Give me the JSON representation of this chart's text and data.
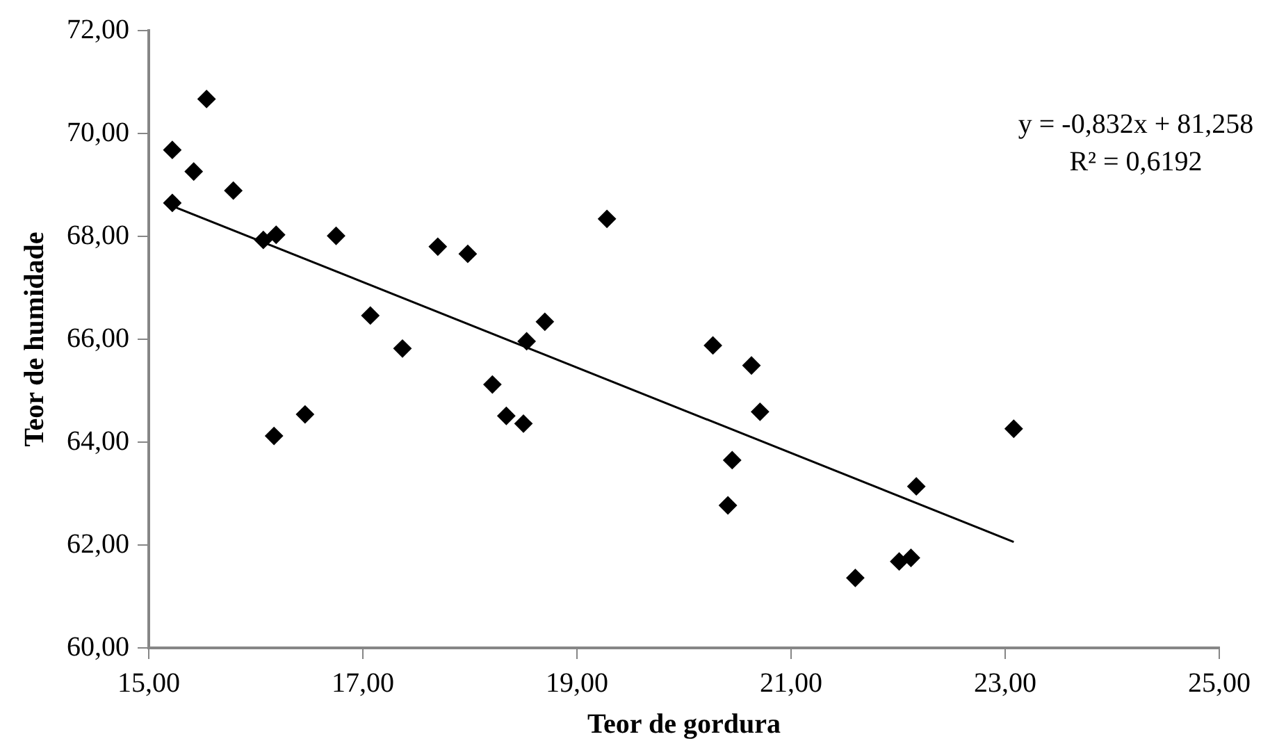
{
  "chart_data": {
    "type": "scatter",
    "xlabel": "Teor de gordura",
    "ylabel": "Teor de humidade",
    "xlim": [
      15,
      25
    ],
    "xticks": [
      {
        "value": 15,
        "label": "15,00"
      },
      {
        "value": 17,
        "label": "17,00"
      },
      {
        "value": 19,
        "label": "19,00"
      },
      {
        "value": 21,
        "label": "21,00"
      },
      {
        "value": 23,
        "label": "23,00"
      },
      {
        "value": 25,
        "label": "25,00"
      }
    ],
    "ylim": [
      60,
      72
    ],
    "yticks": [
      {
        "value": 60,
        "label": "60,00"
      },
      {
        "value": 62,
        "label": "62,00"
      },
      {
        "value": 64,
        "label": "64,00"
      },
      {
        "value": 66,
        "label": "66,00"
      },
      {
        "value": 68,
        "label": "68,00"
      },
      {
        "value": 70,
        "label": "70,00"
      },
      {
        "value": 72,
        "label": "72,00"
      }
    ],
    "grid": false,
    "legend": false,
    "series": [
      {
        "type": "scatter",
        "marker": "diamond",
        "color": "#000000",
        "x": [
          15.22,
          15.54,
          15.42,
          15.22,
          15.79,
          16.07,
          16.19,
          16.75,
          17.7,
          17.98,
          19.28,
          17.07,
          17.37,
          18.53,
          18.7,
          18.21,
          18.34,
          18.5,
          16.17,
          16.46,
          20.27,
          20.63,
          20.71,
          20.45,
          20.41,
          22.17,
          23.08,
          21.6,
          22.01,
          22.12
        ],
        "values": [
          69.68,
          70.67,
          69.26,
          68.65,
          68.89,
          67.93,
          68.03,
          68.01,
          67.8,
          67.66,
          68.34,
          66.46,
          65.82,
          65.96,
          66.34,
          65.12,
          64.51,
          64.36,
          64.12,
          64.54,
          65.88,
          65.49,
          64.59,
          63.65,
          62.77,
          63.14,
          64.26,
          61.36,
          61.68,
          61.75
        ]
      },
      {
        "type": "line",
        "marker": "none",
        "color": "#000000",
        "x": [
          15.22,
          23.08
        ],
        "values": [
          68.59,
          62.06
        ]
      }
    ],
    "annotations": [
      "y = -0,832x + 81,258",
      "R² = 0,6192"
    ]
  }
}
